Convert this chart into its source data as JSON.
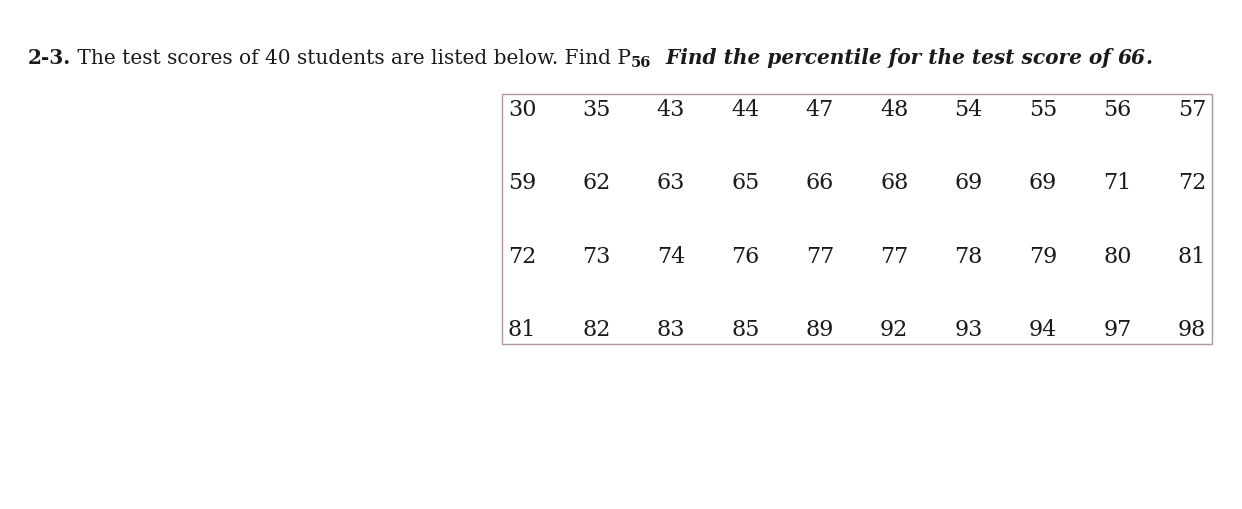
{
  "rows": [
    [
      30,
      35,
      43,
      44,
      47,
      48,
      54,
      55,
      56,
      57
    ],
    [
      59,
      62,
      63,
      65,
      66,
      68,
      69,
      69,
      71,
      72
    ],
    [
      72,
      73,
      74,
      76,
      77,
      77,
      78,
      79,
      80,
      81
    ],
    [
      81,
      82,
      83,
      85,
      89,
      92,
      93,
      94,
      97,
      98
    ]
  ],
  "background_color": "#ffffff",
  "table_border_color": "#b09898",
  "text_color": "#1a1a1a",
  "title_fontsize": 14.5,
  "subscript_fontsize": 10.5,
  "table_fontsize": 16.0,
  "fig_width": 12.42,
  "fig_height": 5.1,
  "dpi": 100
}
